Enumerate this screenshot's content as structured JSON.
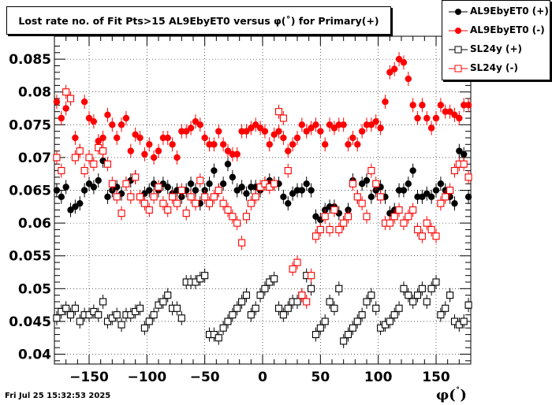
{
  "chart_data": {
    "type": "scatter",
    "title": "Lost rate no. of Fit Pts>15 AL9EbyET0 versus φ(˚) for Primary(+)",
    "xlabel": "φ(˚)",
    "xlim": [
      -180,
      180
    ],
    "ylim": [
      0.0385,
      0.0885
    ],
    "x_ticks": [
      -150,
      -100,
      -50,
      0,
      50,
      100,
      150
    ],
    "x_tick_labels": [
      "−150",
      "−100",
      "−50",
      "0",
      "50",
      "100",
      "150"
    ],
    "y_ticks": [
      0.04,
      0.045,
      0.05,
      0.055,
      0.06,
      0.065,
      0.07,
      0.075,
      0.08,
      0.085
    ],
    "y_tick_labels": [
      "0.04",
      "0.045",
      "0.05",
      "0.055",
      "0.06",
      "0.065",
      "0.07",
      "0.075",
      "0.08",
      "0.085"
    ],
    "grid": true,
    "legend_position": "top-right",
    "x": [
      -178,
      -174,
      -170,
      -166,
      -162,
      -158,
      -154,
      -150,
      -146,
      -142,
      -138,
      -134,
      -130,
      -126,
      -122,
      -118,
      -114,
      -110,
      -106,
      -102,
      -98,
      -94,
      -90,
      -86,
      -82,
      -78,
      -74,
      -70,
      -66,
      -62,
      -58,
      -54,
      -50,
      -46,
      -42,
      -38,
      -34,
      -30,
      -26,
      -22,
      -18,
      -14,
      -10,
      -6,
      -2,
      2,
      6,
      10,
      14,
      18,
      22,
      26,
      30,
      34,
      38,
      42,
      46,
      50,
      54,
      58,
      62,
      66,
      70,
      74,
      78,
      82,
      86,
      90,
      94,
      98,
      102,
      106,
      110,
      114,
      118,
      122,
      126,
      130,
      134,
      138,
      142,
      146,
      150,
      154,
      158,
      162,
      166,
      170,
      174,
      178
    ],
    "series": [
      {
        "name": "AL9EbyET0 (+)",
        "marker": "filled-circle",
        "color": "#000000",
        "values": [
          0.065,
          0.064,
          0.0655,
          0.062,
          0.0625,
          0.063,
          0.065,
          0.066,
          0.0655,
          0.0665,
          0.0695,
          0.064,
          0.065,
          0.0655,
          0.0645,
          0.066,
          0.0665,
          0.067,
          0.064,
          0.0645,
          0.065,
          0.066,
          0.065,
          0.066,
          0.0655,
          0.0645,
          0.065,
          0.064,
          0.065,
          0.066,
          0.065,
          0.063,
          0.065,
          0.066,
          0.068,
          0.065,
          0.066,
          0.069,
          0.067,
          0.065,
          0.0655,
          0.0645,
          0.0655,
          0.0655,
          0.065,
          0.066,
          0.0665,
          0.066,
          0.066,
          0.064,
          0.063,
          0.0645,
          0.065,
          0.065,
          0.066,
          0.065,
          0.061,
          0.0605,
          0.062,
          0.0625,
          0.0625,
          0.0615,
          0.06,
          0.062,
          0.0665,
          0.064,
          0.066,
          0.0665,
          0.064,
          0.065,
          0.0655,
          0.064,
          0.0615,
          0.062,
          0.065,
          0.065,
          0.066,
          0.068,
          0.064,
          0.064,
          0.0645,
          0.064,
          0.065,
          0.066,
          0.065,
          0.064,
          0.063,
          0.071,
          0.0705,
          0.064
        ]
      },
      {
        "name": "AL9EbyET0 (-)",
        "marker": "filled-circle",
        "color": "#ff0000",
        "values": [
          0.0785,
          0.076,
          0.0775,
          0.079,
          0.073,
          0.071,
          0.0785,
          0.076,
          0.0755,
          0.0725,
          0.073,
          0.0765,
          0.075,
          0.073,
          0.075,
          0.076,
          0.071,
          0.0735,
          0.073,
          0.0705,
          0.072,
          0.07,
          0.071,
          0.073,
          0.073,
          0.072,
          0.07,
          0.074,
          0.074,
          0.0745,
          0.0755,
          0.075,
          0.073,
          0.072,
          0.072,
          0.074,
          0.072,
          0.071,
          0.0705,
          0.0705,
          0.074,
          0.074,
          0.0745,
          0.075,
          0.0745,
          0.074,
          0.072,
          0.0735,
          0.074,
          0.073,
          0.071,
          0.072,
          0.073,
          0.075,
          0.074,
          0.0745,
          0.075,
          0.074,
          0.072,
          0.075,
          0.0745,
          0.075,
          0.075,
          0.072,
          0.073,
          0.072,
          0.074,
          0.075,
          0.075,
          0.0755,
          0.0745,
          0.0785,
          0.083,
          0.0835,
          0.085,
          0.0845,
          0.082,
          0.078,
          0.076,
          0.078,
          0.076,
          0.0745,
          0.076,
          0.078,
          0.077,
          0.077,
          0.0765,
          0.076,
          0.078,
          0.078
        ]
      },
      {
        "name": "SL24y (+)",
        "marker": "open-square",
        "color": "#000000",
        "values": [
          0.0455,
          0.0465,
          0.047,
          0.046,
          0.047,
          0.045,
          0.046,
          0.046,
          0.0465,
          0.046,
          0.048,
          0.045,
          0.0455,
          0.046,
          0.0445,
          0.046,
          0.046,
          0.0465,
          0.047,
          0.044,
          0.045,
          0.046,
          0.0475,
          0.048,
          0.049,
          0.047,
          0.047,
          0.0455,
          0.051,
          0.051,
          0.051,
          0.0515,
          0.052,
          0.043,
          0.043,
          0.0425,
          0.044,
          0.045,
          0.046,
          0.047,
          0.048,
          0.049,
          0.046,
          0.047,
          0.049,
          0.05,
          0.051,
          0.0515,
          0.047,
          0.046,
          0.047,
          0.048,
          0.048,
          0.049,
          0.052,
          0.05,
          0.043,
          0.044,
          0.045,
          0.048,
          0.047,
          0.05,
          0.042,
          0.043,
          0.044,
          0.045,
          0.046,
          0.048,
          0.049,
          0.047,
          0.044,
          0.0445,
          0.045,
          0.046,
          0.047,
          0.05,
          0.049,
          0.048,
          0.049,
          0.05,
          0.048,
          0.05,
          0.051,
          0.046,
          0.047,
          0.049,
          0.045,
          0.0445,
          0.045,
          0.0475
        ]
      },
      {
        "name": "SL24y (-)",
        "marker": "open-square",
        "color": "#ff0000",
        "values": [
          0.07,
          0.068,
          0.08,
          0.079,
          0.07,
          0.071,
          0.068,
          0.07,
          0.069,
          0.0715,
          0.071,
          0.069,
          0.066,
          0.064,
          0.0615,
          0.066,
          0.064,
          0.067,
          0.064,
          0.063,
          0.062,
          0.064,
          0.0655,
          0.063,
          0.062,
          0.064,
          0.063,
          0.065,
          0.0615,
          0.064,
          0.063,
          0.0665,
          0.064,
          0.063,
          0.064,
          0.065,
          0.063,
          0.062,
          0.061,
          0.06,
          0.057,
          0.061,
          0.063,
          0.064,
          0.0655,
          0.066,
          0.0655,
          0.066,
          0.077,
          0.076,
          0.068,
          0.053,
          0.054,
          0.049,
          0.048,
          0.052,
          0.058,
          0.059,
          0.061,
          0.059,
          0.062,
          0.059,
          0.06,
          0.061,
          0.066,
          0.064,
          0.063,
          0.061,
          0.068,
          0.066,
          0.064,
          0.06,
          0.06,
          0.061,
          0.062,
          0.06,
          0.061,
          0.062,
          0.059,
          0.058,
          0.06,
          0.059,
          0.058,
          0.063,
          0.064,
          0.065,
          0.068,
          0.069,
          0.069,
          0.067
        ]
      }
    ]
  },
  "title_text": "Lost rate no. of Fit Pts>15 AL9EbyET0 versus φ(˚) for Primary(+)",
  "x_axis_symbol": "φ(",
  "x_axis_degree": "˚",
  "x_axis_close": ")",
  "footer": "Fri Jul 25 15:32:53 2025"
}
